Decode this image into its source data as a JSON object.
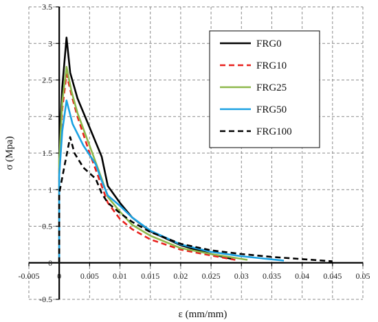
{
  "chart_data": {
    "type": "line",
    "xlabel": "ε (mm/mm)",
    "ylabel": "σ (Mpa)",
    "xlim": [
      -0.005,
      0.05
    ],
    "ylim": [
      -0.5,
      3.5
    ],
    "x_ticks": [
      -0.005,
      0,
      0.005,
      0.01,
      0.015,
      0.02,
      0.025,
      0.03,
      0.035,
      0.04,
      0.045,
      0.05
    ],
    "x_tick_labels": [
      "-0.005",
      "0",
      "0.005",
      "0.01",
      "0.015",
      "0.02",
      "0.025",
      "0.03",
      "0.035",
      "0.04",
      "0.045",
      "0.05"
    ],
    "y_ticks": [
      -0.5,
      0,
      0.5,
      1,
      1.5,
      2,
      2.5,
      3,
      3.5
    ],
    "y_tick_labels": [
      "-0.5",
      "0",
      "0.5",
      "1",
      "1.5",
      "2",
      "2.5",
      "3",
      "3.5"
    ],
    "grid": true,
    "legend_position": "top-right",
    "series": [
      {
        "name": "FRG0",
        "color": "#000000",
        "dash": "solid",
        "points": [
          [
            0,
            0
          ],
          [
            0,
            1.5
          ],
          [
            0.0005,
            2.4
          ],
          [
            0.0012,
            3.08
          ],
          [
            0.0018,
            2.6
          ],
          [
            0.003,
            2.25
          ],
          [
            0.005,
            1.85
          ],
          [
            0.007,
            1.45
          ],
          [
            0.008,
            1.05
          ],
          [
            0.01,
            0.82
          ],
          [
            0.012,
            0.62
          ],
          [
            0.015,
            0.43
          ],
          [
            0.02,
            0.24
          ],
          [
            0.025,
            0.12
          ],
          [
            0.0285,
            0.05
          ]
        ]
      },
      {
        "name": "FRG10",
        "color": "#e8201c",
        "dash": "dashed",
        "points": [
          [
            0,
            0
          ],
          [
            0,
            1.3
          ],
          [
            0.0005,
            2.1
          ],
          [
            0.0012,
            2.58
          ],
          [
            0.002,
            2.3
          ],
          [
            0.003,
            2.0
          ],
          [
            0.005,
            1.5
          ],
          [
            0.007,
            1.05
          ],
          [
            0.008,
            0.82
          ],
          [
            0.01,
            0.6
          ],
          [
            0.012,
            0.46
          ],
          [
            0.015,
            0.32
          ],
          [
            0.02,
            0.18
          ],
          [
            0.025,
            0.1
          ],
          [
            0.029,
            0.04
          ]
        ]
      },
      {
        "name": "FRG25",
        "color": "#8db84a",
        "dash": "solid",
        "points": [
          [
            0,
            0
          ],
          [
            0,
            1.4
          ],
          [
            0.0005,
            2.2
          ],
          [
            0.0012,
            2.68
          ],
          [
            0.002,
            2.35
          ],
          [
            0.003,
            2.05
          ],
          [
            0.005,
            1.6
          ],
          [
            0.007,
            1.15
          ],
          [
            0.008,
            0.9
          ],
          [
            0.01,
            0.7
          ],
          [
            0.012,
            0.52
          ],
          [
            0.015,
            0.37
          ],
          [
            0.02,
            0.2
          ],
          [
            0.025,
            0.12
          ],
          [
            0.031,
            0.04
          ]
        ]
      },
      {
        "name": "FRG50",
        "color": "#1ba1e2",
        "dash": "solid",
        "points": [
          [
            0,
            0
          ],
          [
            0,
            1.2
          ],
          [
            0.0005,
            1.8
          ],
          [
            0.0012,
            2.22
          ],
          [
            0.0022,
            1.9
          ],
          [
            0.004,
            1.6
          ],
          [
            0.006,
            1.35
          ],
          [
            0.007,
            1.12
          ],
          [
            0.008,
            0.92
          ],
          [
            0.01,
            0.78
          ],
          [
            0.012,
            0.62
          ],
          [
            0.015,
            0.44
          ],
          [
            0.02,
            0.25
          ],
          [
            0.025,
            0.15
          ],
          [
            0.03,
            0.09
          ],
          [
            0.037,
            0.03
          ]
        ]
      },
      {
        "name": "FRG100",
        "color": "#000000",
        "dash": "dashed",
        "points": [
          [
            0,
            0
          ],
          [
            0,
            0.95
          ],
          [
            0.0008,
            1.3
          ],
          [
            0.0018,
            1.72
          ],
          [
            0.0025,
            1.5
          ],
          [
            0.004,
            1.3
          ],
          [
            0.006,
            1.15
          ],
          [
            0.007,
            0.95
          ],
          [
            0.008,
            0.82
          ],
          [
            0.01,
            0.68
          ],
          [
            0.012,
            0.56
          ],
          [
            0.015,
            0.42
          ],
          [
            0.02,
            0.26
          ],
          [
            0.025,
            0.17
          ],
          [
            0.03,
            0.12
          ],
          [
            0.035,
            0.08
          ],
          [
            0.04,
            0.05
          ],
          [
            0.045,
            0.02
          ]
        ]
      }
    ]
  }
}
